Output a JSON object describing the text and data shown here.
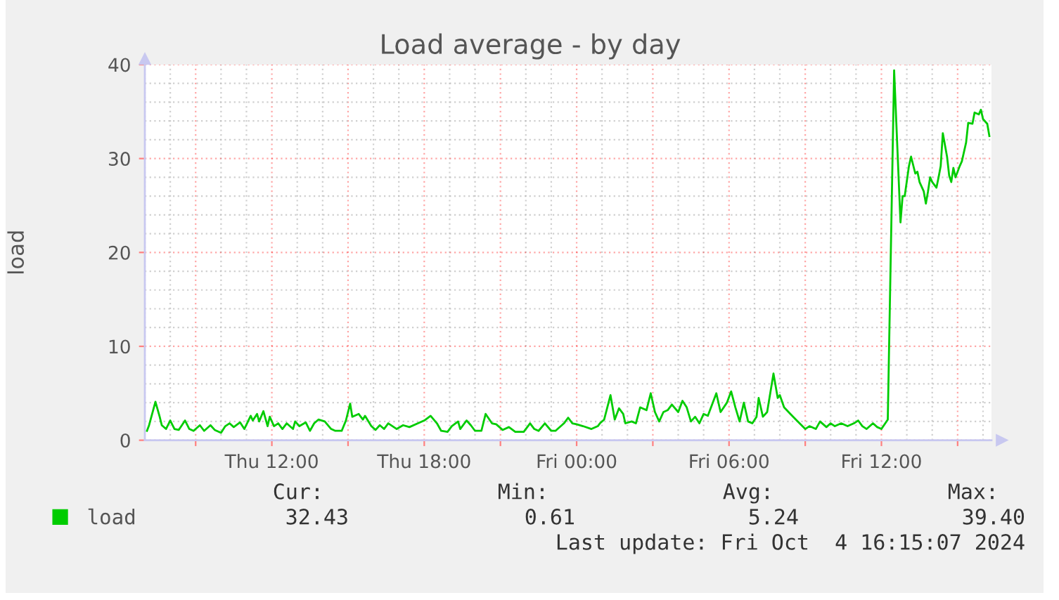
{
  "chart_data": {
    "type": "line",
    "title": "Load average - by day",
    "ylabel": "load",
    "x": [
      "2024-10-03T07:05",
      "2024-10-03T07:10",
      "2024-10-03T07:25",
      "2024-10-03T07:35",
      "2024-10-03T07:40",
      "2024-10-03T07:50",
      "2024-10-03T08:00",
      "2024-10-03T08:10",
      "2024-10-03T08:20",
      "2024-10-03T08:35",
      "2024-10-03T08:45",
      "2024-10-03T08:55",
      "2024-10-03T09:10",
      "2024-10-03T09:20",
      "2024-10-03T09:35",
      "2024-10-03T09:45",
      "2024-10-03T10:00",
      "2024-10-03T10:10",
      "2024-10-03T10:20",
      "2024-10-03T10:30",
      "2024-10-03T10:45",
      "2024-10-03T10:55",
      "2024-10-03T11:10",
      "2024-10-03T11:15",
      "2024-10-03T11:25",
      "2024-10-03T11:30",
      "2024-10-03T11:40",
      "2024-10-03T11:50",
      "2024-10-03T11:55",
      "2024-10-03T12:05",
      "2024-10-03T12:15",
      "2024-10-03T12:25",
      "2024-10-03T12:35",
      "2024-10-03T12:50",
      "2024-10-03T12:55",
      "2024-10-03T13:05",
      "2024-10-03T13:20",
      "2024-10-03T13:30",
      "2024-10-03T13:40",
      "2024-10-03T13:50",
      "2024-10-03T14:05",
      "2024-10-03T14:20",
      "2024-10-03T14:30",
      "2024-10-03T14:45",
      "2024-10-03T14:55",
      "2024-10-03T15:05",
      "2024-10-03T15:10",
      "2024-10-03T15:25",
      "2024-10-03T15:35",
      "2024-10-03T15:40",
      "2024-10-03T15:55",
      "2024-10-03T16:05",
      "2024-10-03T16:15",
      "2024-10-03T16:25",
      "2024-10-03T16:35",
      "2024-10-03T16:55",
      "2024-10-03T17:10",
      "2024-10-03T17:25",
      "2024-10-03T17:45",
      "2024-10-03T18:00",
      "2024-10-03T18:15",
      "2024-10-03T18:30",
      "2024-10-03T18:40",
      "2024-10-03T18:55",
      "2024-10-03T19:05",
      "2024-10-03T19:20",
      "2024-10-03T19:25",
      "2024-10-03T19:40",
      "2024-10-03T19:50",
      "2024-10-03T20:00",
      "2024-10-03T20:15",
      "2024-10-03T20:25",
      "2024-10-03T20:40",
      "2024-10-03T20:50",
      "2024-10-03T21:05",
      "2024-10-03T21:20",
      "2024-10-03T21:35",
      "2024-10-03T21:55",
      "2024-10-03T22:10",
      "2024-10-03T22:20",
      "2024-10-03T22:30",
      "2024-10-03T22:45",
      "2024-10-03T23:00",
      "2024-10-03T23:10",
      "2024-10-03T23:30",
      "2024-10-03T23:40",
      "2024-10-03T23:50",
      "2024-10-04T00:00",
      "2024-10-04T00:15",
      "2024-10-04T00:35",
      "2024-10-04T00:50",
      "2024-10-04T00:55",
      "2024-10-04T01:05",
      "2024-10-04T01:20",
      "2024-10-04T01:30",
      "2024-10-04T01:40",
      "2024-10-04T01:50",
      "2024-10-04T01:55",
      "2024-10-04T02:10",
      "2024-10-04T02:20",
      "2024-10-04T02:30",
      "2024-10-04T02:45",
      "2024-10-04T02:55",
      "2024-10-04T03:05",
      "2024-10-04T03:15",
      "2024-10-04T03:25",
      "2024-10-04T03:35",
      "2024-10-04T03:45",
      "2024-10-04T04:00",
      "2024-10-04T04:10",
      "2024-10-04T04:20",
      "2024-10-04T04:30",
      "2024-10-04T04:40",
      "2024-10-04T04:50",
      "2024-10-04T05:00",
      "2024-10-04T05:10",
      "2024-10-04T05:20",
      "2024-10-04T05:30",
      "2024-10-04T05:40",
      "2024-10-04T05:55",
      "2024-10-04T06:05",
      "2024-10-04T06:15",
      "2024-10-04T06:25",
      "2024-10-04T06:35",
      "2024-10-04T06:45",
      "2024-10-04T06:55",
      "2024-10-04T07:05",
      "2024-10-04T07:10",
      "2024-10-04T07:20",
      "2024-10-04T07:30",
      "2024-10-04T07:45",
      "2024-10-04T07:55",
      "2024-10-04T08:00",
      "2024-10-04T08:10",
      "2024-10-04T08:25",
      "2024-10-04T08:40",
      "2024-10-04T09:00",
      "2024-10-04T09:10",
      "2024-10-04T09:25",
      "2024-10-04T09:35",
      "2024-10-04T09:50",
      "2024-10-04T10:00",
      "2024-10-04T10:10",
      "2024-10-04T10:25",
      "2024-10-04T10:40",
      "2024-10-04T10:55",
      "2024-10-04T11:05",
      "2024-10-04T11:15",
      "2024-10-04T11:25",
      "2024-10-04T11:40",
      "2024-10-04T11:50",
      "2024-10-04T12:00",
      "2024-10-04T12:15",
      "2024-10-04T12:30",
      "2024-10-04T12:45",
      "2024-10-04T12:50",
      "2024-10-04T12:55",
      "2024-10-04T13:05",
      "2024-10-04T13:10",
      "2024-10-04T13:20",
      "2024-10-04T13:25",
      "2024-10-04T13:30",
      "2024-10-04T13:40",
      "2024-10-04T13:45",
      "2024-10-04T13:50",
      "2024-10-04T13:55",
      "2024-10-04T14:00",
      "2024-10-04T14:10",
      "2024-10-04T14:15",
      "2024-10-04T14:20",
      "2024-10-04T14:25",
      "2024-10-04T14:35",
      "2024-10-04T14:40",
      "2024-10-04T14:45",
      "2024-10-04T14:50",
      "2024-10-04T14:55",
      "2024-10-04T15:05",
      "2024-10-04T15:10",
      "2024-10-04T15:20",
      "2024-10-04T15:25",
      "2024-10-04T15:35",
      "2024-10-04T15:40",
      "2024-10-04T15:50",
      "2024-10-04T15:55",
      "2024-10-04T16:00",
      "2024-10-04T16:10",
      "2024-10-04T16:15"
    ],
    "series": [
      {
        "name": "load",
        "color": "#00cc00",
        "values": [
          1.0,
          1.6,
          4.1,
          2.5,
          1.6,
          1.2,
          2.1,
          1.2,
          1.1,
          2.1,
          1.2,
          1.0,
          1.6,
          1.0,
          1.6,
          1.1,
          0.8,
          1.5,
          1.8,
          1.4,
          1.9,
          1.2,
          2.6,
          2.1,
          2.8,
          2.0,
          3.1,
          1.5,
          2.5,
          1.5,
          1.8,
          1.2,
          1.8,
          1.2,
          2.0,
          1.5,
          1.9,
          1.0,
          1.8,
          2.2,
          2.0,
          1.2,
          1.0,
          1.0,
          2.1,
          3.9,
          2.5,
          2.8,
          2.2,
          2.6,
          1.5,
          1.1,
          1.6,
          1.2,
          1.8,
          1.2,
          1.6,
          1.4,
          1.8,
          2.1,
          2.6,
          1.8,
          1.0,
          0.9,
          1.5,
          2.0,
          1.2,
          2.1,
          1.6,
          1.0,
          1.0,
          2.8,
          1.8,
          1.7,
          1.1,
          1.4,
          0.9,
          0.9,
          1.8,
          1.2,
          1.0,
          1.8,
          1.0,
          1.0,
          1.8,
          2.4,
          1.8,
          1.7,
          1.5,
          1.2,
          1.5,
          1.8,
          2.2,
          4.8,
          2.2,
          3.4,
          2.8,
          1.8,
          2.0,
          1.8,
          3.5,
          3.2,
          5.0,
          3.0,
          2.0,
          3.0,
          3.2,
          3.8,
          3.0,
          4.2,
          3.5,
          2.0,
          2.5,
          1.8,
          2.8,
          2.6,
          3.8,
          5.0,
          3.0,
          4.0,
          5.2,
          3.5,
          2.0,
          4.0,
          2.0,
          1.8,
          2.5,
          4.5,
          2.5,
          3.0,
          7.1,
          4.5,
          4.8,
          3.5,
          2.8,
          2.1,
          1.2,
          1.5,
          1.2,
          2.0,
          1.4,
          1.8,
          1.5,
          1.8,
          1.5,
          1.8,
          2.1,
          1.5,
          1.2,
          1.8,
          1.4,
          1.2,
          2.2,
          39.4,
          23.2,
          26.0,
          26.0,
          29.2,
          30.2,
          28.4,
          28.6,
          27.5,
          26.5,
          25.2,
          26.5,
          28.0,
          27.5,
          26.9,
          28.0,
          29.2,
          32.7,
          30.2,
          28.2,
          27.5,
          29.0,
          28.0,
          29.2,
          29.7,
          31.7,
          33.8,
          33.7,
          34.9,
          34.7,
          35.2,
          34.2,
          33.7,
          32.4
        ]
      }
    ],
    "xlim": [
      "2024-10-03T07:00",
      "2024-10-04T16:20"
    ],
    "xticks": [
      {
        "value": "2024-10-03T09:00",
        "label": null
      },
      {
        "value": "2024-10-03T12:00",
        "label": "Thu 12:00"
      },
      {
        "value": "2024-10-03T15:00",
        "label": null
      },
      {
        "value": "2024-10-03T18:00",
        "label": "Thu 18:00"
      },
      {
        "value": "2024-10-03T21:00",
        "label": null
      },
      {
        "value": "2024-10-04T00:00",
        "label": "Fri 00:00"
      },
      {
        "value": "2024-10-04T03:00",
        "label": null
      },
      {
        "value": "2024-10-04T06:00",
        "label": "Fri 06:00"
      },
      {
        "value": "2024-10-04T09:00",
        "label": null
      },
      {
        "value": "2024-10-04T12:00",
        "label": "Fri 12:00"
      },
      {
        "value": "2024-10-04T15:00",
        "label": null
      }
    ],
    "ylim": [
      0,
      40
    ],
    "yticks": [
      0,
      10,
      20,
      30,
      40
    ],
    "grid": true,
    "legend": "bottom left",
    "annotations": [
      "Cur:",
      "Min:",
      "Avg:",
      "Max:",
      "32.43",
      "0.61",
      "5.24",
      "39.40",
      "Last update: Fri Oct  4 16:15:07 2024"
    ]
  }
}
